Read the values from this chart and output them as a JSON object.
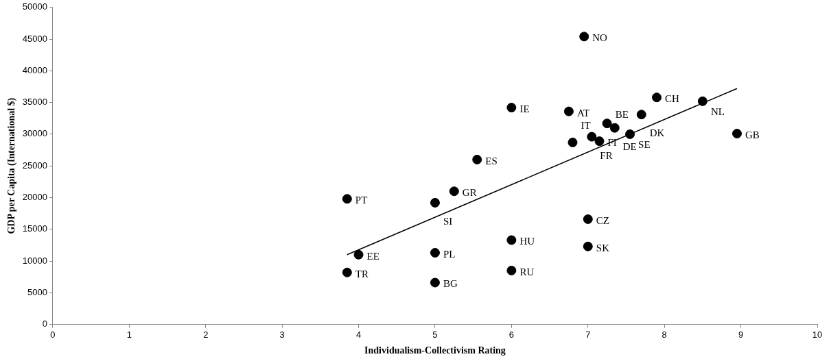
{
  "chart_data": {
    "type": "scatter",
    "xlabel": "Individualism-Collectivism Rating",
    "ylabel": "GDP per Capita (International $)",
    "xlim": [
      0,
      10
    ],
    "xticks": [
      0,
      1,
      2,
      3,
      4,
      5,
      6,
      7,
      8,
      9,
      10
    ],
    "ylim": [
      0,
      50000
    ],
    "yticks": [
      0,
      5000,
      10000,
      15000,
      20000,
      25000,
      30000,
      35000,
      40000,
      45000,
      50000
    ],
    "grid": false,
    "legend": false,
    "marker": "circle",
    "series": [
      {
        "color": "#000000",
        "x": [
          6.95,
          6,
          6.75,
          7.25,
          7.35,
          7.05,
          7.15,
          6.8,
          7.55,
          7.7,
          7.9,
          8.5,
          8.95,
          5.55,
          5.25,
          5,
          3.85,
          7,
          6,
          7,
          4,
          5,
          6,
          3.85,
          5
        ],
        "values": [
          45400,
          34200,
          33600,
          31700,
          31000,
          29600,
          28900,
          28700,
          30000,
          33100,
          35800,
          35200,
          30100,
          26000,
          21000,
          19200,
          19800,
          16600,
          13300,
          12300,
          11000,
          11300,
          8500,
          8200,
          6600
        ]
      },
      {
        "type": "line",
        "color": "#000000",
        "marker": "none",
        "line_style": "solid",
        "x": [
          3.85,
          8.95
        ],
        "values": [
          11000,
          37200
        ]
      }
    ],
    "annotations": [
      {
        "text": "NO",
        "x": 6.95,
        "y": 45400
      },
      {
        "text": "IE",
        "x": 6,
        "y": 34200
      },
      {
        "text": "AT",
        "x": 6.75,
        "y": 33600
      },
      {
        "text": "BE",
        "x": 7.25,
        "y": 31700
      },
      {
        "text": "DE",
        "x": 7.35,
        "y": 31000
      },
      {
        "text": "FR",
        "x": 7.05,
        "y": 29600
      },
      {
        "text": "FI",
        "x": 7.15,
        "y": 28900
      },
      {
        "text": "IT",
        "x": 6.8,
        "y": 28700
      },
      {
        "text": "SE",
        "x": 7.55,
        "y": 30000
      },
      {
        "text": "DK",
        "x": 7.7,
        "y": 33100
      },
      {
        "text": "CH",
        "x": 7.9,
        "y": 35800
      },
      {
        "text": "NL",
        "x": 8.5,
        "y": 35200
      },
      {
        "text": "GB",
        "x": 8.95,
        "y": 30100
      },
      {
        "text": "ES",
        "x": 5.55,
        "y": 26000
      },
      {
        "text": "GR",
        "x": 5.25,
        "y": 21000
      },
      {
        "text": "SI",
        "x": 5,
        "y": 19200
      },
      {
        "text": "PT",
        "x": 3.85,
        "y": 19800
      },
      {
        "text": "CZ",
        "x": 7,
        "y": 16600
      },
      {
        "text": "HU",
        "x": 6,
        "y": 13300
      },
      {
        "text": "SK",
        "x": 7,
        "y": 12300
      },
      {
        "text": "EE",
        "x": 4,
        "y": 11000
      },
      {
        "text": "PL",
        "x": 5,
        "y": 11300
      },
      {
        "text": "RU",
        "x": 6,
        "y": 8500
      },
      {
        "text": "TR",
        "x": 3.85,
        "y": 8200
      },
      {
        "text": "BG",
        "x": 5,
        "y": 6600
      }
    ]
  }
}
